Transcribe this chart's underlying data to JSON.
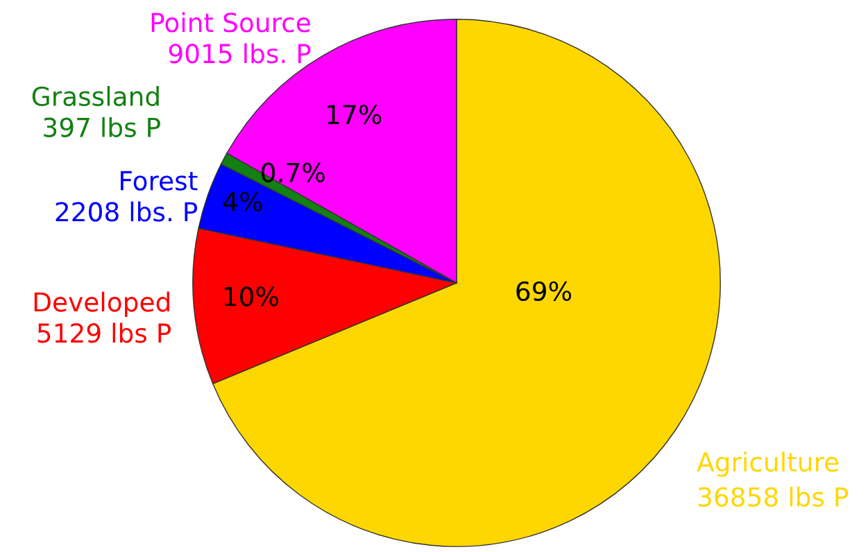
{
  "chart_data": {
    "type": "pie",
    "categories": [
      "Agriculture",
      "Developed",
      "Forest",
      "Grassland",
      "Point Source"
    ],
    "values": [
      36858,
      5129,
      2208,
      397,
      9015
    ],
    "colors": [
      "#ffd700",
      "#ff0000",
      "#0000ff",
      "#128012",
      "#ff00ff"
    ],
    "value_labels": [
      "36858 lbs P",
      "5129 lbs P",
      "2208 lbs. P",
      "397 lbs P",
      "9015 lbs. P"
    ],
    "annotations": [
      {
        "text": "69%",
        "x": "Agriculture"
      },
      {
        "text": "10%",
        "x": "Developed"
      },
      {
        "text": "4%",
        "x": "Forest"
      },
      {
        "text": "0.7%",
        "x": "Grassland"
      },
      {
        "text": "17%",
        "x": "Point Source"
      }
    ],
    "legend": false
  }
}
